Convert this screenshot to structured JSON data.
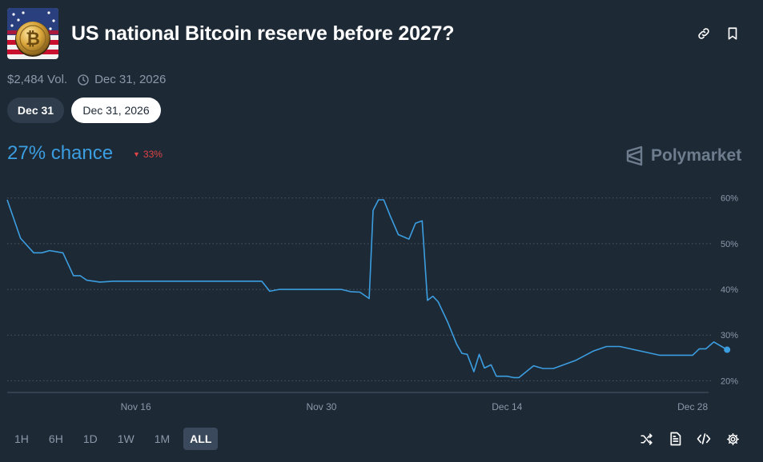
{
  "market": {
    "title": "US national Bitcoin reserve before 2027?",
    "volume": "$2,484 Vol.",
    "end_date": "Dec 31, 2026",
    "thumbnail_icon": "bitcoin-flag-thumbnail"
  },
  "date_pills": [
    {
      "label": "Dec 31",
      "selected": false
    },
    {
      "label": "Dec 31, 2026",
      "selected": true
    }
  ],
  "odds": {
    "chance": "27% chance",
    "change": "33%",
    "change_direction": "down",
    "chance_color": "#3b9ee0",
    "change_color": "#e04545"
  },
  "brand": {
    "name": "Polymarket"
  },
  "range_buttons": [
    "1H",
    "6H",
    "1D",
    "1W",
    "1M",
    "ALL"
  ],
  "active_range": "ALL",
  "footer_icons": [
    "shuffle-icon",
    "document-icon",
    "embed-code-icon",
    "settings-icon"
  ],
  "chart_data": {
    "type": "line",
    "xlabel": "",
    "ylabel": "",
    "x_ticks": [
      "Nov 16",
      "Nov 30",
      "Dec 14",
      "Dec 28"
    ],
    "x_tick_days": [
      16,
      30,
      44,
      58
    ],
    "y_ticks": [
      "60%",
      "50%",
      "40%",
      "30%",
      "20%"
    ],
    "y_tick_values": [
      60,
      50,
      40,
      30,
      20
    ],
    "xlim": [
      6.3,
      59.2
    ],
    "ylim": [
      18.5,
      61
    ],
    "grid": true,
    "line_color": "#3b9ee0",
    "series": [
      {
        "x": [
          6.3,
          7.3,
          8.3,
          8.9,
          9.5,
          10.5,
          11.3,
          11.8,
          12.3,
          13.3,
          14.3,
          14.9,
          15.5,
          16.5,
          19.5,
          22.5,
          25.5,
          26.1,
          26.8,
          28.5,
          31.5,
          32.2,
          32.9,
          33.6,
          33.9,
          34.3,
          34.7,
          35.2,
          35.8,
          36.6,
          37.1,
          37.6,
          38.0,
          38.4,
          38.8,
          39.5,
          40.2,
          40.6,
          41.0,
          41.5,
          41.9,
          42.3,
          42.8,
          43.2,
          43.6,
          44.0,
          44.5,
          44.9,
          46.0,
          46.7,
          47.5,
          49.2,
          50.5,
          51.5,
          52.0,
          52.5,
          55.5,
          58.0,
          58.5,
          58.9
        ],
        "y": [
          59.6,
          51.2,
          48.0,
          48.0,
          48.5,
          48.0,
          43.0,
          43.0,
          42.0,
          41.6,
          41.8,
          41.8,
          41.8,
          41.8,
          41.8,
          41.8,
          41.8,
          39.6,
          40.0,
          40.0,
          40.0,
          39.5,
          39.4,
          38.0,
          57.3,
          59.6,
          59.6,
          56.0,
          52.0,
          51.0,
          54.5,
          55.0,
          37.6,
          38.5,
          37.3,
          33.0,
          28.0,
          26.0,
          25.8,
          22.0,
          25.8,
          22.8,
          23.5,
          21.0,
          21.0,
          21.0,
          20.7,
          20.7,
          23.3,
          22.7,
          22.7,
          24.5,
          26.5,
          27.5,
          27.5,
          27.5,
          25.6,
          25.6,
          27.0,
          27.0
        ]
      }
    ]
  },
  "chart_x_extension": [
    59.0,
    59.6,
    60.6
  ],
  "chart_y_extension": [
    27.0,
    28.5,
    26.8
  ]
}
